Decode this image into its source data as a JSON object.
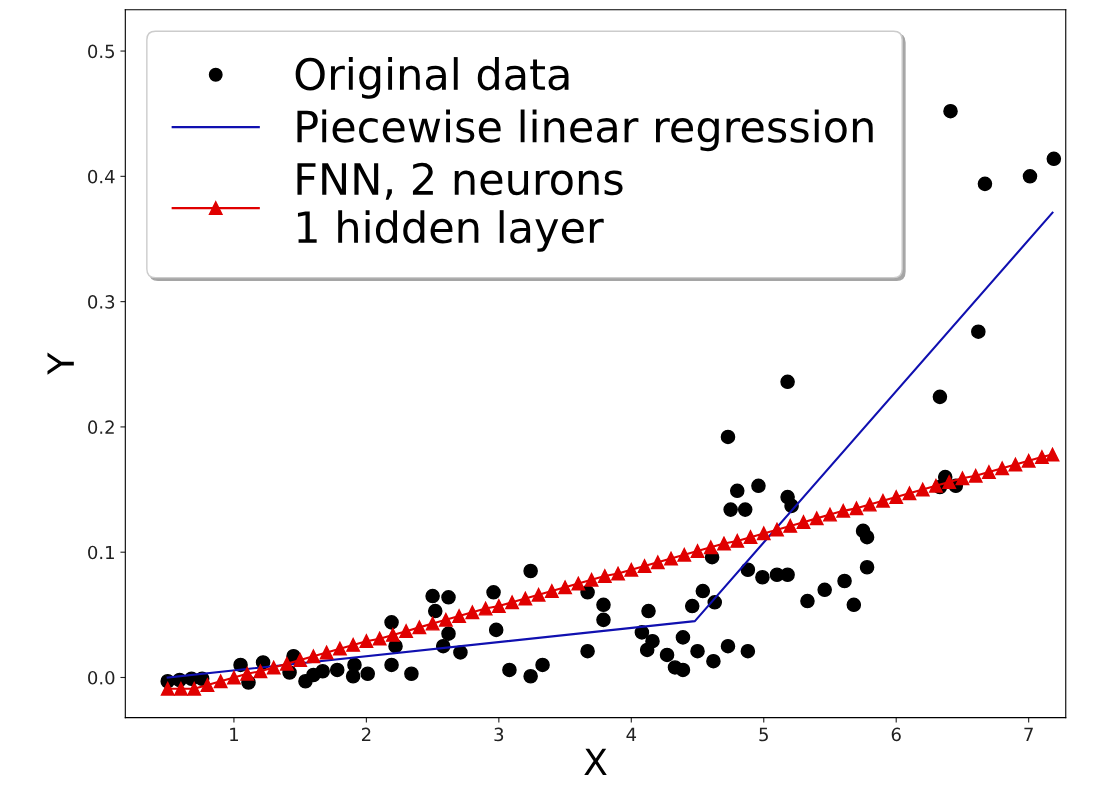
{
  "chart_data": {
    "type": "scatter",
    "xlabel": "X",
    "ylabel": "Y",
    "xlim": [
      0.18,
      7.28
    ],
    "ylim": [
      -0.032,
      0.533
    ],
    "xticks": [
      1,
      2,
      3,
      4,
      5,
      6,
      7
    ],
    "yticks": [
      {
        "value": 0,
        "label": "0.0"
      },
      0.1,
      0.2,
      0.3,
      0.4,
      0.5
    ],
    "grid": false,
    "legend": "top left",
    "series": [
      {
        "name": "Original data",
        "marker": "circle",
        "color": "#000000",
        "x": [
          0.5,
          0.59,
          0.68,
          0.76,
          1.05,
          1.11,
          1.22,
          1.42,
          1.45,
          1.54,
          1.6,
          1.67,
          1.78,
          1.9,
          1.91,
          2.01,
          2.19,
          2.22,
          2.19,
          2.34,
          2.5,
          2.52,
          2.62,
          2.62,
          2.58,
          2.71,
          2.96,
          2.98,
          3.24,
          3.08,
          3.24,
          3.33,
          3.67,
          3.79,
          3.79,
          3.67,
          4.13,
          4.08,
          4.16,
          4.12,
          4.27,
          4.33,
          4.39,
          4.39,
          4.46,
          4.5,
          4.54,
          4.62,
          4.63,
          4.61,
          4.73,
          4.88,
          4.88,
          4.99,
          5.1,
          5.18,
          4.73,
          4.8,
          4.96,
          4.75,
          4.86,
          5.18,
          5.18,
          5.21,
          5.33,
          5.46,
          5.61,
          5.68,
          5.78,
          5.75,
          5.78,
          6.33,
          6.37,
          6.33,
          6.45,
          6.62,
          6.41,
          6.67,
          7.01,
          7.19
        ],
        "values": [
          -0.003,
          -0.002,
          -0.001,
          -0.001,
          0.01,
          -0.004,
          0.012,
          0.004,
          0.017,
          -0.003,
          0.002,
          0.005,
          0.006,
          0.001,
          0.01,
          0.003,
          0.044,
          0.025,
          0.01,
          0.003,
          0.065,
          0.053,
          0.064,
          0.035,
          0.025,
          0.02,
          0.068,
          0.038,
          0.085,
          0.006,
          0.001,
          0.01,
          0.068,
          0.058,
          0.046,
          0.021,
          0.053,
          0.036,
          0.029,
          0.022,
          0.018,
          0.008,
          0.006,
          0.032,
          0.057,
          0.021,
          0.069,
          0.013,
          0.06,
          0.096,
          0.025,
          0.021,
          0.086,
          0.08,
          0.082,
          0.082,
          0.192,
          0.149,
          0.153,
          0.134,
          0.134,
          0.236,
          0.144,
          0.137,
          0.061,
          0.07,
          0.077,
          0.058,
          0.088,
          0.117,
          0.112,
          0.224,
          0.16,
          0.152,
          0.153,
          0.276,
          0.452,
          0.394,
          0.4,
          0.414
        ]
      },
      {
        "name": "Piecewise linear regression",
        "type": "line",
        "marker": "none",
        "color": "#1010b0",
        "x": [
          0.5,
          4.48,
          7.18
        ],
        "values": [
          0.0,
          0.045,
          0.371
        ]
      },
      {
        "name": "FNN, 2 neurons\n1 hidden layer",
        "type": "line",
        "marker": "triangle",
        "color": "#e00000",
        "x": [
          0.5,
          0.6,
          0.7,
          0.8,
          0.9,
          1.0,
          1.1,
          1.2,
          1.3,
          1.4,
          1.5,
          1.6,
          1.7,
          1.8,
          1.9,
          2.0,
          2.1,
          2.2,
          2.3,
          2.4,
          2.5,
          2.6,
          2.7,
          2.8,
          2.9,
          3.0,
          3.1,
          3.2,
          3.3,
          3.4,
          3.5,
          3.6,
          3.7,
          3.8,
          3.9,
          4.0,
          4.1,
          4.2,
          4.3,
          4.4,
          4.5,
          4.6,
          4.7,
          4.8,
          4.9,
          5.0,
          5.1,
          5.2,
          5.3,
          5.4,
          5.5,
          5.6,
          5.7,
          5.8,
          5.9,
          6.0,
          6.1,
          6.2,
          6.3,
          6.4,
          6.5,
          6.6,
          6.7,
          6.8,
          6.9,
          7.0,
          7.1,
          7.18
        ],
        "values": [
          -0.009,
          -0.009,
          -0.009,
          -0.006,
          -0.003,
          0.0,
          0.003,
          0.005,
          0.008,
          0.011,
          0.014,
          0.017,
          0.02,
          0.023,
          0.026,
          0.029,
          0.031,
          0.034,
          0.037,
          0.04,
          0.043,
          0.046,
          0.049,
          0.052,
          0.055,
          0.057,
          0.06,
          0.063,
          0.066,
          0.069,
          0.072,
          0.075,
          0.078,
          0.081,
          0.083,
          0.086,
          0.089,
          0.092,
          0.095,
          0.098,
          0.101,
          0.104,
          0.107,
          0.109,
          0.112,
          0.115,
          0.118,
          0.121,
          0.124,
          0.127,
          0.13,
          0.133,
          0.135,
          0.138,
          0.141,
          0.144,
          0.147,
          0.15,
          0.153,
          0.156,
          0.159,
          0.161,
          0.164,
          0.167,
          0.17,
          0.173,
          0.176,
          0.178
        ]
      }
    ]
  }
}
